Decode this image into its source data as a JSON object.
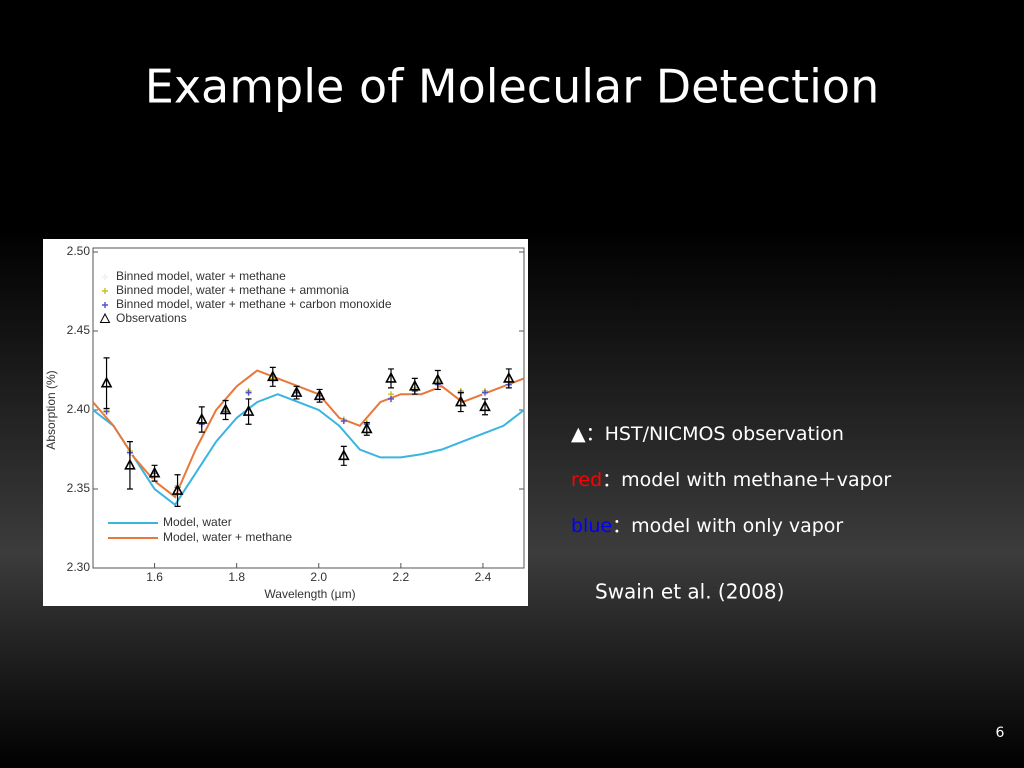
{
  "slide": {
    "title": "Example of Molecular Detection",
    "notes": [
      {
        "label": "▲",
        "color": "#ffffff",
        "text": "：HST/NICMOS observation"
      },
      {
        "label": "red",
        "color": "#ff0000",
        "text": "：model with methane＋vapor"
      },
      {
        "label": "blue",
        "color": "#0000ff",
        "text": "：model with only vapor"
      }
    ],
    "citation": "Swain et al. (2008)",
    "page_number": "6"
  },
  "chart_data": {
    "type": "line",
    "xlabel": "Wavelength (µm)",
    "ylabel": "Absorption (%)",
    "xlim": [
      1.45,
      2.5
    ],
    "ylim": [
      2.3,
      2.5
    ],
    "xticks": [
      1.6,
      1.8,
      {
        "value": 2.0,
        "label": "2.0"
      },
      2.2,
      2.4
    ],
    "yticks": [
      {
        "value": 2.3,
        "label": "2.30"
      },
      2.35,
      {
        "value": 2.4,
        "label": "2.40"
      },
      2.45,
      {
        "value": 2.5,
        "label": "2.50"
      }
    ],
    "series": [
      {
        "name": "Binned model, water + methane",
        "kind": "points",
        "marker": "plus",
        "color": "#f0f0f0",
        "x": [
          1.483,
          1.54,
          1.6,
          1.656,
          1.715,
          1.773,
          1.829,
          1.888,
          1.946,
          2.002,
          2.061,
          2.117,
          2.176,
          2.234,
          2.29,
          2.346,
          2.405,
          2.463
        ],
        "values": [
          2.398,
          2.372,
          2.356,
          2.35,
          2.39,
          2.398,
          2.41,
          2.418,
          2.41,
          2.408,
          2.392,
          2.39,
          2.405,
          2.41,
          2.414,
          2.41,
          2.41,
          2.415
        ]
      },
      {
        "name": "Binned model, water + methane + ammonia",
        "kind": "points",
        "marker": "plus",
        "color": "#c8c020",
        "x": [
          1.483,
          1.54,
          1.6,
          1.656,
          1.715,
          1.773,
          1.829,
          1.888,
          1.946,
          2.002,
          2.061,
          2.117,
          2.176,
          2.234,
          2.29,
          2.346,
          2.405,
          2.463
        ],
        "values": [
          2.4,
          2.374,
          2.358,
          2.352,
          2.392,
          2.4,
          2.412,
          2.42,
          2.412,
          2.41,
          2.394,
          2.392,
          2.41,
          2.414,
          2.418,
          2.412,
          2.412,
          2.418
        ]
      },
      {
        "name": "Binned model, water + methane + carbon monoxide",
        "kind": "points",
        "marker": "plus",
        "color": "#5050d0",
        "x": [
          1.483,
          1.54,
          1.6,
          1.656,
          1.715,
          1.773,
          1.829,
          1.888,
          1.946,
          2.002,
          2.061,
          2.117,
          2.176,
          2.234,
          2.29,
          2.346,
          2.405,
          2.463
        ],
        "values": [
          2.399,
          2.373,
          2.36,
          2.351,
          2.391,
          2.399,
          2.411,
          2.419,
          2.411,
          2.409,
          2.393,
          2.391,
          2.407,
          2.412,
          2.416,
          2.411,
          2.411,
          2.416
        ]
      },
      {
        "name": "Observations",
        "kind": "points",
        "marker": "triangle",
        "color": "#000000",
        "x": [
          1.483,
          1.54,
          1.6,
          1.656,
          1.715,
          1.773,
          1.829,
          1.888,
          1.946,
          2.002,
          2.061,
          2.117,
          2.176,
          2.234,
          2.29,
          2.346,
          2.405,
          2.463
        ],
        "values": [
          2.417,
          2.365,
          2.36,
          2.349,
          2.394,
          2.4,
          2.399,
          2.421,
          2.411,
          2.409,
          2.371,
          2.388,
          2.42,
          2.415,
          2.419,
          2.405,
          2.402,
          2.42
        ],
        "errors": [
          0.016,
          0.015,
          0.005,
          0.01,
          0.008,
          0.006,
          0.008,
          0.006,
          0.004,
          0.004,
          0.006,
          0.004,
          0.006,
          0.005,
          0.006,
          0.006,
          0.005,
          0.006
        ]
      },
      {
        "name": "Model, water",
        "kind": "line",
        "color": "#3ab4e0",
        "x": [
          1.45,
          1.5,
          1.55,
          1.6,
          1.65,
          1.7,
          1.75,
          1.8,
          1.85,
          1.9,
          1.95,
          2.0,
          2.05,
          2.1,
          2.15,
          2.2,
          2.25,
          2.3,
          2.35,
          2.4,
          2.45,
          2.5
        ],
        "values": [
          2.4,
          2.39,
          2.37,
          2.35,
          2.34,
          2.36,
          2.38,
          2.395,
          2.405,
          2.41,
          2.405,
          2.4,
          2.39,
          2.375,
          2.37,
          2.37,
          2.372,
          2.375,
          2.38,
          2.385,
          2.39,
          2.4
        ]
      },
      {
        "name": "Model, water + methane",
        "kind": "line",
        "color": "#e8773a",
        "x": [
          1.45,
          1.5,
          1.55,
          1.6,
          1.65,
          1.7,
          1.75,
          1.8,
          1.85,
          1.9,
          1.95,
          2.0,
          2.05,
          2.1,
          2.15,
          2.2,
          2.25,
          2.3,
          2.35,
          2.4,
          2.45,
          2.5
        ],
        "values": [
          2.405,
          2.39,
          2.37,
          2.355,
          2.345,
          2.375,
          2.4,
          2.415,
          2.425,
          2.42,
          2.415,
          2.41,
          2.395,
          2.39,
          2.405,
          2.41,
          2.41,
          2.415,
          2.405,
          2.41,
          2.415,
          2.42
        ]
      }
    ]
  }
}
